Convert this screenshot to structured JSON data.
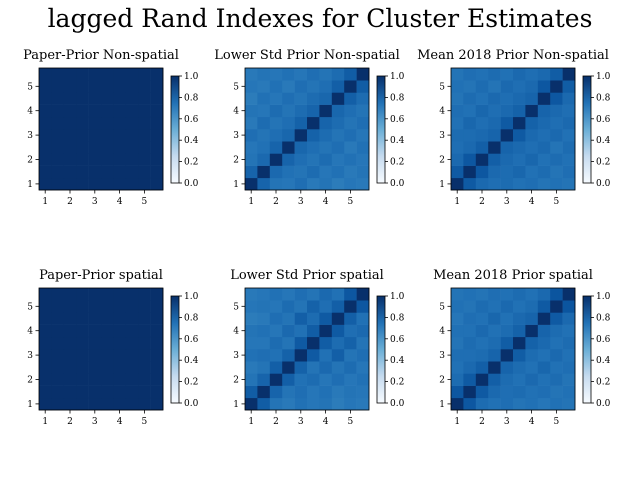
{
  "figure": {
    "title": "lagged Rand Indexes for Cluster Estimates"
  },
  "colors": {
    "cmap_low": "#f7fbff",
    "cmap_mid": "#6aaed6",
    "cmap_high": "#08306b"
  },
  "chart_data": [
    {
      "type": "heatmap",
      "title": "Paper-Prior Non-spatial",
      "x_ticks": [
        "1",
        "2",
        "3",
        "4",
        "5"
      ],
      "y_ticks": [
        "1",
        "2",
        "3",
        "4",
        "5"
      ],
      "colorbar_ticks": [
        "0.0",
        "0.2",
        "0.4",
        "0.6",
        "0.8",
        "1.0"
      ],
      "vmin": 0,
      "vmax": 1,
      "values": [
        [
          1,
          1,
          1,
          1,
          1,
          1,
          1,
          1,
          1,
          1
        ],
        [
          1,
          1,
          1,
          1,
          1,
          1,
          1,
          1,
          1,
          1
        ],
        [
          1,
          1,
          1,
          1,
          1,
          1,
          1,
          1,
          1,
          1
        ],
        [
          1,
          1,
          1,
          1,
          1,
          1,
          1,
          1,
          1,
          1
        ],
        [
          1,
          1,
          1,
          1,
          1,
          1,
          1,
          1,
          1,
          1
        ],
        [
          1,
          1,
          1,
          1,
          1,
          1,
          1,
          1,
          1,
          1
        ],
        [
          1,
          1,
          1,
          1,
          1,
          1,
          1,
          1,
          1,
          1
        ],
        [
          1,
          1,
          1,
          1,
          1,
          1,
          1,
          1,
          1,
          1
        ],
        [
          1,
          1,
          1,
          1,
          1,
          1,
          1,
          1,
          1,
          1
        ],
        [
          1,
          1,
          1,
          1,
          1,
          1,
          1,
          1,
          1,
          1
        ]
      ]
    },
    {
      "type": "heatmap",
      "title": "Lower Std Prior Non-spatial",
      "x_ticks": [
        "1",
        "2",
        "3",
        "4",
        "5"
      ],
      "y_ticks": [
        "1",
        "2",
        "3",
        "4",
        "5"
      ],
      "colorbar_ticks": [
        "0.0",
        "0.2",
        "0.4",
        "0.6",
        "0.8",
        "1.0"
      ],
      "vmin": 0,
      "vmax": 1,
      "values": [
        [
          1.0,
          0.8,
          0.74,
          0.73,
          0.76,
          0.72,
          0.74,
          0.71,
          0.73,
          0.72
        ],
        [
          0.8,
          1.0,
          0.78,
          0.75,
          0.74,
          0.77,
          0.73,
          0.75,
          0.72,
          0.74
        ],
        [
          0.74,
          0.78,
          1.0,
          0.8,
          0.76,
          0.74,
          0.77,
          0.73,
          0.75,
          0.73
        ],
        [
          0.73,
          0.75,
          0.8,
          1.0,
          0.79,
          0.76,
          0.74,
          0.76,
          0.72,
          0.75
        ],
        [
          0.76,
          0.74,
          0.76,
          0.79,
          1.0,
          0.81,
          0.77,
          0.74,
          0.76,
          0.73
        ],
        [
          0.72,
          0.77,
          0.74,
          0.76,
          0.81,
          1.0,
          0.8,
          0.77,
          0.74,
          0.76
        ],
        [
          0.74,
          0.73,
          0.77,
          0.74,
          0.77,
          0.8,
          1.0,
          0.79,
          0.76,
          0.74
        ],
        [
          0.71,
          0.75,
          0.73,
          0.76,
          0.74,
          0.77,
          0.79,
          1.0,
          0.82,
          0.77
        ],
        [
          0.73,
          0.72,
          0.75,
          0.72,
          0.76,
          0.74,
          0.76,
          0.82,
          1.0,
          0.83
        ],
        [
          0.72,
          0.74,
          0.73,
          0.75,
          0.73,
          0.76,
          0.74,
          0.77,
          0.83,
          1.0
        ]
      ]
    },
    {
      "type": "heatmap",
      "title": "Mean 2018 Prior Non-spatial",
      "x_ticks": [
        "1",
        "2",
        "3",
        "4",
        "5"
      ],
      "y_ticks": [
        "1",
        "2",
        "3",
        "4",
        "5"
      ],
      "colorbar_ticks": [
        "0.0",
        "0.2",
        "0.4",
        "0.6",
        "0.8",
        "1.0"
      ],
      "vmin": 0,
      "vmax": 1,
      "values": [
        [
          1.0,
          0.84,
          0.78,
          0.76,
          0.77,
          0.75,
          0.76,
          0.74,
          0.75,
          0.74
        ],
        [
          0.84,
          1.0,
          0.85,
          0.78,
          0.77,
          0.79,
          0.75,
          0.77,
          0.74,
          0.76
        ],
        [
          0.78,
          0.85,
          1.0,
          0.82,
          0.78,
          0.76,
          0.79,
          0.75,
          0.77,
          0.75
        ],
        [
          0.76,
          0.78,
          0.82,
          1.0,
          0.8,
          0.78,
          0.76,
          0.78,
          0.74,
          0.77
        ],
        [
          0.77,
          0.77,
          0.78,
          0.8,
          1.0,
          0.84,
          0.78,
          0.76,
          0.78,
          0.75
        ],
        [
          0.75,
          0.79,
          0.76,
          0.78,
          0.84,
          1.0,
          0.81,
          0.78,
          0.76,
          0.78
        ],
        [
          0.76,
          0.75,
          0.79,
          0.76,
          0.78,
          0.81,
          1.0,
          0.8,
          0.78,
          0.76
        ],
        [
          0.74,
          0.77,
          0.75,
          0.78,
          0.76,
          0.78,
          0.8,
          1.0,
          0.85,
          0.78
        ],
        [
          0.75,
          0.74,
          0.77,
          0.74,
          0.78,
          0.76,
          0.78,
          0.85,
          1.0,
          0.83
        ],
        [
          0.74,
          0.76,
          0.75,
          0.77,
          0.75,
          0.78,
          0.76,
          0.78,
          0.83,
          1.0
        ]
      ]
    },
    {
      "type": "heatmap",
      "title": "Paper-Prior spatial",
      "x_ticks": [
        "1",
        "2",
        "3",
        "4",
        "5"
      ],
      "y_ticks": [
        "1",
        "2",
        "3",
        "4",
        "5"
      ],
      "colorbar_ticks": [
        "0.0",
        "0.2",
        "0.4",
        "0.6",
        "0.8",
        "1.0"
      ],
      "vmin": 0,
      "vmax": 1,
      "values": [
        [
          1,
          1,
          1,
          1,
          1,
          1,
          1,
          1,
          1,
          1
        ],
        [
          1,
          1,
          1,
          1,
          1,
          1,
          1,
          1,
          1,
          1
        ],
        [
          1,
          1,
          1,
          1,
          1,
          1,
          1,
          1,
          1,
          1
        ],
        [
          1,
          1,
          1,
          1,
          1,
          1,
          1,
          1,
          1,
          1
        ],
        [
          1,
          1,
          1,
          1,
          1,
          1,
          1,
          1,
          1,
          1
        ],
        [
          1,
          1,
          1,
          1,
          1,
          1,
          1,
          1,
          1,
          1
        ],
        [
          1,
          1,
          1,
          1,
          1,
          1,
          1,
          1,
          1,
          1
        ],
        [
          1,
          1,
          1,
          1,
          1,
          1,
          1,
          1,
          1,
          1
        ],
        [
          1,
          1,
          1,
          1,
          1,
          1,
          1,
          1,
          1,
          1
        ],
        [
          1,
          1,
          1,
          1,
          1,
          1,
          1,
          1,
          1,
          1
        ]
      ]
    },
    {
      "type": "heatmap",
      "title": "Lower Std Prior spatial",
      "x_ticks": [
        "1",
        "2",
        "3",
        "4",
        "5"
      ],
      "y_ticks": [
        "1",
        "2",
        "3",
        "4",
        "5"
      ],
      "colorbar_ticks": [
        "0.0",
        "0.2",
        "0.4",
        "0.6",
        "0.8",
        "1.0"
      ],
      "vmin": 0,
      "vmax": 1,
      "values": [
        [
          1.0,
          0.83,
          0.74,
          0.72,
          0.75,
          0.73,
          0.74,
          0.71,
          0.73,
          0.72
        ],
        [
          0.83,
          1.0,
          0.8,
          0.74,
          0.76,
          0.73,
          0.75,
          0.72,
          0.74,
          0.73
        ],
        [
          0.74,
          0.8,
          1.0,
          0.82,
          0.75,
          0.77,
          0.73,
          0.76,
          0.73,
          0.75
        ],
        [
          0.72,
          0.74,
          0.82,
          1.0,
          0.81,
          0.74,
          0.78,
          0.74,
          0.77,
          0.73
        ],
        [
          0.75,
          0.76,
          0.75,
          0.81,
          1.0,
          0.84,
          0.75,
          0.82,
          0.74,
          0.76
        ],
        [
          0.73,
          0.73,
          0.77,
          0.74,
          0.84,
          1.0,
          0.83,
          0.77,
          0.81,
          0.74
        ],
        [
          0.74,
          0.75,
          0.73,
          0.78,
          0.75,
          0.83,
          1.0,
          0.84,
          0.76,
          0.78
        ],
        [
          0.71,
          0.72,
          0.76,
          0.74,
          0.82,
          0.77,
          0.84,
          1.0,
          0.82,
          0.75
        ],
        [
          0.73,
          0.74,
          0.73,
          0.77,
          0.74,
          0.81,
          0.76,
          0.82,
          1.0,
          0.85
        ],
        [
          0.72,
          0.73,
          0.75,
          0.73,
          0.76,
          0.74,
          0.78,
          0.75,
          0.85,
          1.0
        ]
      ]
    },
    {
      "type": "heatmap",
      "title": "Mean 2018 Prior spatial",
      "x_ticks": [
        "1",
        "2",
        "3",
        "4",
        "5"
      ],
      "y_ticks": [
        "1",
        "2",
        "3",
        "4",
        "5"
      ],
      "colorbar_ticks": [
        "0.0",
        "0.2",
        "0.4",
        "0.6",
        "0.8",
        "1.0"
      ],
      "vmin": 0,
      "vmax": 1,
      "values": [
        [
          1.0,
          0.85,
          0.77,
          0.75,
          0.76,
          0.74,
          0.75,
          0.73,
          0.75,
          0.74
        ],
        [
          0.85,
          1.0,
          0.84,
          0.78,
          0.76,
          0.77,
          0.75,
          0.76,
          0.74,
          0.75
        ],
        [
          0.77,
          0.84,
          1.0,
          0.82,
          0.77,
          0.75,
          0.78,
          0.75,
          0.77,
          0.74
        ],
        [
          0.75,
          0.78,
          0.82,
          1.0,
          0.8,
          0.77,
          0.75,
          0.79,
          0.75,
          0.76
        ],
        [
          0.76,
          0.76,
          0.77,
          0.8,
          1.0,
          0.83,
          0.77,
          0.75,
          0.78,
          0.75
        ],
        [
          0.74,
          0.77,
          0.75,
          0.77,
          0.83,
          1.0,
          0.81,
          0.78,
          0.75,
          0.77
        ],
        [
          0.75,
          0.75,
          0.78,
          0.75,
          0.77,
          0.81,
          1.0,
          0.8,
          0.77,
          0.75
        ],
        [
          0.73,
          0.76,
          0.75,
          0.79,
          0.75,
          0.78,
          0.8,
          1.0,
          0.84,
          0.78
        ],
        [
          0.75,
          0.74,
          0.77,
          0.75,
          0.78,
          0.75,
          0.77,
          0.84,
          1.0,
          0.86
        ],
        [
          0.74,
          0.75,
          0.74,
          0.76,
          0.75,
          0.77,
          0.75,
          0.78,
          0.86,
          1.0
        ]
      ]
    }
  ]
}
